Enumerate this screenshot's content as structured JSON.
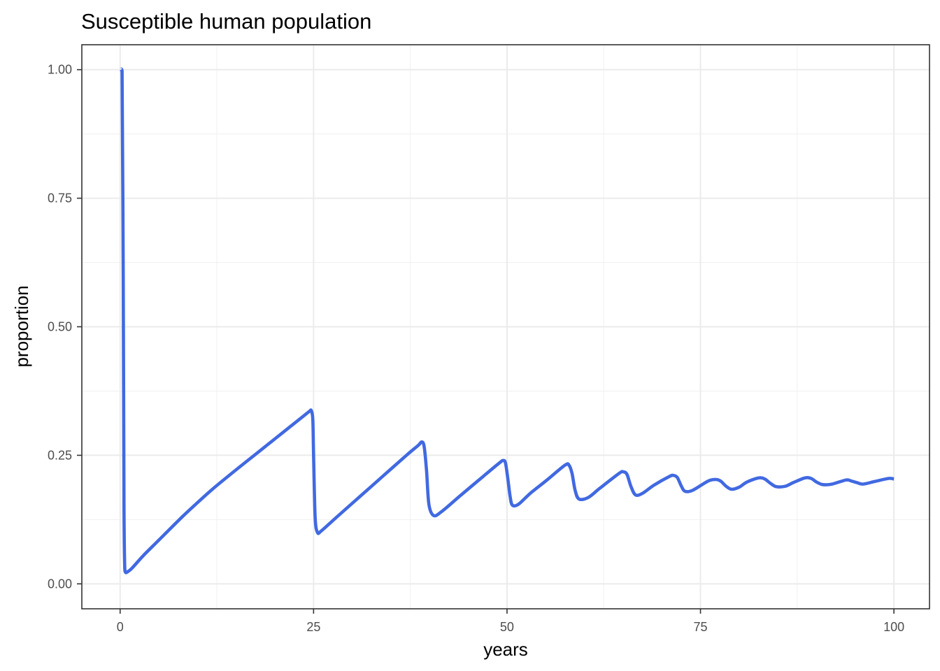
{
  "chart_data": {
    "type": "line",
    "title": "Susceptible human population",
    "xlabel": "years",
    "ylabel": "proportion",
    "xlim": [
      -4.95,
      104.6
    ],
    "ylim": [
      -0.0485,
      1.0485
    ],
    "x_ticks": [
      0,
      25,
      50,
      75,
      100
    ],
    "x_tick_labels": [
      "0",
      "25",
      "50",
      "75",
      "100"
    ],
    "y_ticks": [
      0,
      0.25,
      0.5,
      0.75,
      1.0
    ],
    "y_tick_labels": [
      "0.00",
      "0.25",
      "0.50",
      "0.75",
      "1.00"
    ],
    "grid": true,
    "legend": "none",
    "series": [
      {
        "color": "#4169E1",
        "x": [
          0.1,
          0.25,
          0.4,
          0.5,
          0.6,
          0.7,
          0.8,
          1.5,
          3,
          5,
          8,
          10,
          12,
          15,
          18,
          20,
          22,
          24,
          24.5,
          24.7,
          24.9,
          25.0,
          25.2,
          25.5,
          26,
          28,
          31,
          34,
          37,
          38.5,
          39.0,
          39.3,
          39.6,
          39.9,
          40.5,
          41.5,
          44,
          47,
          49,
          49.5,
          49.8,
          50.1,
          50.4,
          50.7,
          51.5,
          53,
          55,
          57.5,
          58.0,
          58.4,
          58.8,
          59.3,
          60.5,
          62,
          64.5,
          65.0,
          65.5,
          66.0,
          66.6,
          67.5,
          69,
          71.0,
          71.5,
          72.0,
          72.5,
          73.0,
          74,
          76.0,
          77.0,
          77.6,
          78.3,
          79.0,
          80,
          81,
          82.5,
          83.3,
          84.0,
          84.8,
          86,
          87,
          88.5,
          89.3,
          90.0,
          90.8,
          92,
          93.8,
          94.5,
          95.2,
          96.0,
          97.5,
          99.3,
          100
        ],
        "y": [
          1.0,
          0.997,
          0.6,
          0.15,
          0.03,
          0.024,
          0.022,
          0.03,
          0.055,
          0.085,
          0.13,
          0.158,
          0.185,
          0.222,
          0.258,
          0.282,
          0.306,
          0.33,
          0.336,
          0.337,
          0.32,
          0.25,
          0.13,
          0.1,
          0.103,
          0.13,
          0.17,
          0.21,
          0.25,
          0.269,
          0.276,
          0.266,
          0.22,
          0.155,
          0.133,
          0.14,
          0.172,
          0.21,
          0.235,
          0.24,
          0.235,
          0.205,
          0.17,
          0.153,
          0.155,
          0.176,
          0.2,
          0.231,
          0.231,
          0.215,
          0.182,
          0.165,
          0.168,
          0.186,
          0.215,
          0.218,
          0.213,
          0.19,
          0.173,
          0.176,
          0.192,
          0.209,
          0.211,
          0.207,
          0.191,
          0.18,
          0.182,
          0.2,
          0.203,
          0.2,
          0.19,
          0.184,
          0.188,
          0.198,
          0.206,
          0.204,
          0.196,
          0.189,
          0.19,
          0.197,
          0.206,
          0.205,
          0.198,
          0.193,
          0.194,
          0.202,
          0.2,
          0.197,
          0.194,
          0.199,
          0.205,
          0.204
        ]
      }
    ]
  }
}
